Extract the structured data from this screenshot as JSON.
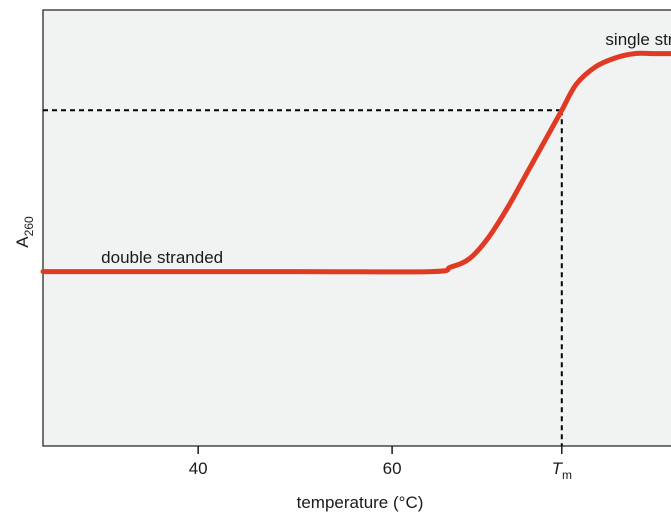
{
  "chart_data": {
    "type": "line",
    "title": "",
    "xlabel": "temperature (°C)",
    "ylabel": {
      "main": "A",
      "sub": "260"
    },
    "xlim": [
      24,
      90
    ],
    "ylim": [
      0,
      1
    ],
    "grid": false,
    "legend": "none",
    "x_ticks": [
      {
        "value": 40,
        "label": "40",
        "italic": false
      },
      {
        "value": 60,
        "label": "60",
        "italic": false
      },
      {
        "value": 77.5,
        "label": "T",
        "sub": "m",
        "italic": true
      }
    ],
    "series": [
      {
        "color": "#e03a24",
        "x": [
          24,
          50,
          64,
          66,
          68,
          70,
          72,
          74,
          76,
          77.5,
          79,
          81,
          83,
          85,
          87,
          90
        ],
        "y": [
          0.4,
          0.4,
          0.4,
          0.41,
          0.43,
          0.48,
          0.55,
          0.63,
          0.71,
          0.77,
          0.83,
          0.87,
          0.89,
          0.9,
          0.9,
          0.9
        ]
      }
    ],
    "midpoint": {
      "x": 77.5,
      "y": 0.77
    },
    "annotations": [
      {
        "text": "double stranded",
        "x": 30,
        "y": 0.42
      },
      {
        "text": "single stranded",
        "x": 82,
        "y": 0.92
      }
    ],
    "colors": {
      "curve": "#e03a24",
      "plot_bg": "#f1f3f2",
      "axis": "#1a1a1a",
      "guide": "#000000"
    }
  }
}
